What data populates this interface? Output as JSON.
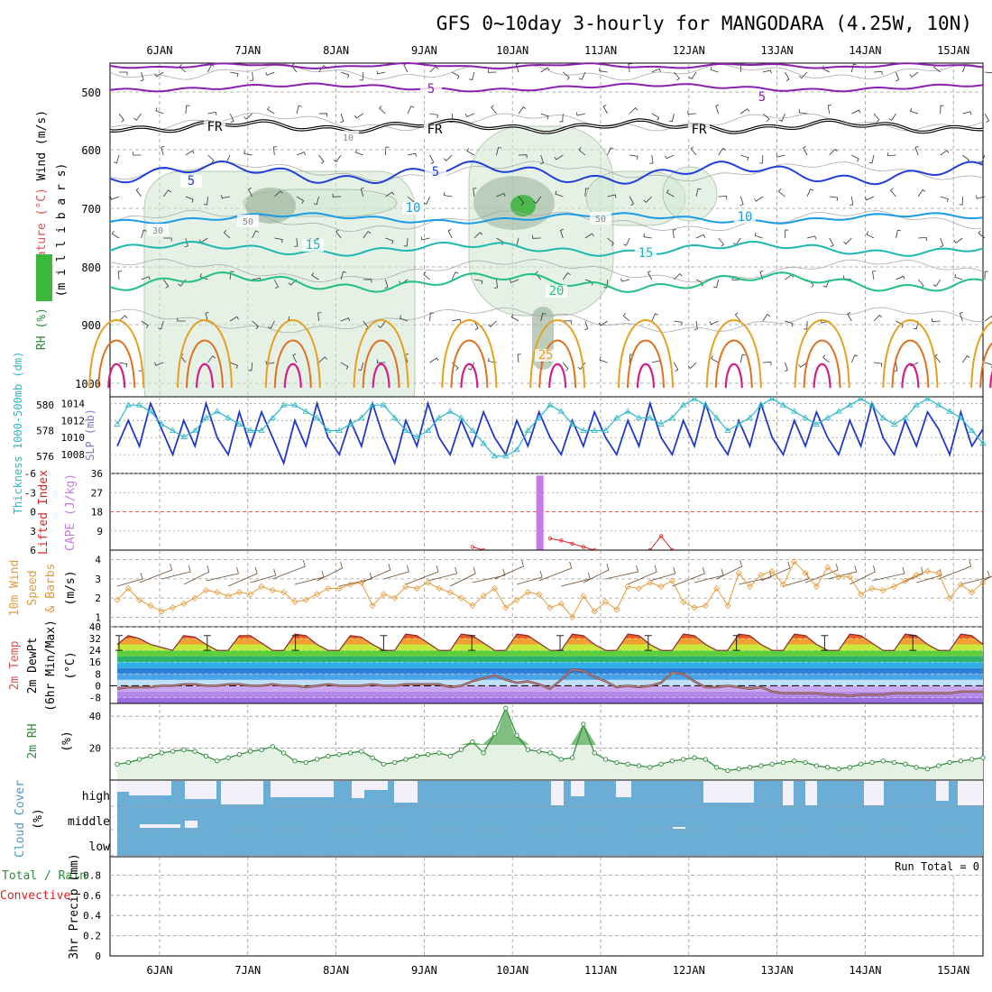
{
  "title": "GFS 0~10day 3-hourly for MANGODARA (4.25W, 10N)",
  "days": [
    "6JAN",
    "7JAN",
    "8JAN",
    "9JAN",
    "10JAN",
    "11JAN",
    "12JAN",
    "13JAN",
    "14JAN",
    "15JAN"
  ],
  "colors": {
    "purple": "#8a1fb0",
    "black": "#000000",
    "blue": "#1f3fd8",
    "skyblue": "#1a9be8",
    "teal": "#1cb8b0",
    "green": "#20c080",
    "orange": "#e6a020",
    "darkorange": "#e07020",
    "magenta": "#d0208a",
    "rhgreen": "#2e8b3a",
    "cloud": "#6aaed6",
    "cape": "#c77ae8",
    "li": "#e02020",
    "wind10": "#e69a3a",
    "thick": "#2bb8c8",
    "slp": "#2038c8"
  },
  "panels": [
    {
      "id": "upper-air",
      "label_lines": [
        "Wind (m/s)",
        "Temperature (°C)",
        "RH (%)",
        "(millibars)"
      ],
      "ylabel_parts": [
        {
          "text": "RH (%)",
          "color": "#2e8b3a"
        },
        {
          "text": "Temperature (°C)",
          "color": "#e05050"
        },
        {
          "text": "Wind (m/s)",
          "color": "#000000"
        },
        {
          "text": "(m i l l i b a r s)",
          "color": "#000000"
        }
      ],
      "ticks": [
        "500",
        "600",
        "700",
        "800",
        "900",
        "1000"
      ],
      "contour_labels": [
        "5",
        "5",
        "FR",
        "FR",
        "FR",
        "5",
        "5",
        "10",
        "10",
        "15",
        "15",
        "20",
        "25",
        "10",
        "50",
        "50",
        "30"
      ]
    },
    {
      "id": "thickness-slp",
      "ylabel_left": "Thickness 1000-500mb (dm)",
      "ylabel_right": "SLP (mb)",
      "ticks_left": [
        "580",
        "578",
        "576"
      ],
      "ticks_right": [
        "1014",
        "1012",
        "1010",
        "1008"
      ]
    },
    {
      "id": "cape-li",
      "ylabel_left": "Lifted Index",
      "ylabel_right": "CAPE (J/kg)",
      "ticks_left": [
        "-6",
        "-3",
        "0",
        "3",
        "6"
      ],
      "ticks_right": [
        "36",
        "27",
        "18",
        "9"
      ]
    },
    {
      "id": "wind10m",
      "ylabel": "10m Wind Speed & Barbs (m/s)",
      "ylabel_lines": [
        "10m Wind",
        "Speed",
        "& Barbs",
        "(m/s)"
      ],
      "ticks": [
        "4",
        "3",
        "2",
        "1"
      ]
    },
    {
      "id": "temp2m",
      "ylabel_lines": [
        "2m Temp",
        "2m DewPt",
        "(6hr Min/Max)",
        "(°C)"
      ],
      "ticks": [
        "40",
        "32",
        "24",
        "16",
        "8",
        "0",
        "-8"
      ]
    },
    {
      "id": "rh2m",
      "ylabel_lines": [
        "2m RH",
        "(%)"
      ],
      "ticks": [
        "40",
        "20"
      ]
    },
    {
      "id": "cloud",
      "ylabel_lines": [
        "Cloud Cover",
        "(%)"
      ],
      "layers": [
        "high",
        "middle",
        "low"
      ]
    },
    {
      "id": "precip",
      "ylabel_lines": [
        "Total / Rain",
        "Convective",
        "3hr Precip (mm)"
      ],
      "ticks": [
        "0.8",
        "0.6",
        "0.4",
        "0.2",
        "0"
      ],
      "run_total": "Run Total = 0"
    }
  ],
  "chart_data": [
    {
      "type": "line",
      "title": "Thickness 1000-500mb (dm) / SLP (mb)",
      "series": [
        {
          "name": "SLP (mb)",
          "values": [
            1009,
            1012,
            1009,
            1014,
            1011,
            1008,
            1012,
            1009,
            1014,
            1010,
            1008,
            1013,
            1009,
            1013,
            1010,
            1007,
            1012,
            1009,
            1014,
            1010,
            1008,
            1012,
            1009,
            1014,
            1010,
            1007,
            1012,
            1009,
            1014,
            1010,
            1008,
            1012,
            1009,
            1013,
            1010,
            1008,
            1012,
            1009,
            1013,
            1010,
            1008,
            1012,
            1009,
            1013,
            1010,
            1008,
            1012,
            1009,
            1014,
            1010,
            1008,
            1012,
            1009,
            1014,
            1010,
            1008,
            1012,
            1009,
            1014,
            1010,
            1008,
            1012,
            1009,
            1013,
            1010,
            1008,
            1012,
            1009,
            1014,
            1010,
            1008,
            1012,
            1009,
            1013,
            1011,
            1008,
            1013,
            1009,
            1011
          ]
        },
        {
          "name": "Thickness (dm)",
          "values": [
            578.5,
            580,
            580,
            579.5,
            578.5,
            578,
            577.5,
            578,
            579,
            579.5,
            579,
            578.5,
            578,
            578,
            579,
            580,
            580,
            579.5,
            579,
            578,
            578,
            578.5,
            579,
            580,
            580,
            579,
            578,
            577.5,
            578,
            579,
            579.5,
            579,
            578,
            577,
            576,
            576,
            576.5,
            578,
            579,
            580,
            579.5,
            578.5,
            578,
            578,
            578,
            579,
            579.5,
            579,
            579,
            578.5,
            579,
            580,
            580.5,
            580,
            579,
            578,
            578.5,
            579,
            580,
            580.5,
            580,
            579.5,
            579,
            578.5,
            579,
            579.5,
            580,
            580.5,
            580,
            579,
            578.5,
            579,
            580,
            580.5,
            580,
            579.5,
            579,
            578,
            577
          ]
        }
      ],
      "ylim_left": [
        575,
        581
      ],
      "ylim_right": [
        1006,
        1015
      ]
    },
    {
      "type": "line",
      "title": "Lifted Index / CAPE",
      "series": [
        {
          "name": "CAPE (J/kg)",
          "values": [
            0,
            0,
            0,
            0,
            0,
            0,
            0,
            0,
            0,
            0,
            0,
            0,
            0,
            0,
            0,
            0,
            0,
            0,
            0,
            0,
            0,
            0,
            0,
            0,
            0,
            0,
            0,
            0,
            0,
            0,
            0,
            0,
            0,
            0,
            0,
            0,
            0,
            0,
            35,
            0,
            0,
            0,
            0,
            0,
            0,
            0,
            0,
            0,
            0,
            0,
            0,
            0,
            0,
            0,
            0,
            0,
            0,
            0,
            0,
            0,
            0,
            0,
            0,
            0,
            0,
            0,
            0,
            0,
            0,
            0,
            0,
            0,
            0,
            0,
            0,
            0,
            0,
            0,
            0
          ]
        },
        {
          "name": "Lifted Index",
          "values": [
            null,
            null,
            null,
            null,
            null,
            null,
            null,
            null,
            null,
            null,
            null,
            null,
            null,
            null,
            null,
            null,
            null,
            null,
            null,
            null,
            null,
            null,
            null,
            null,
            null,
            null,
            null,
            null,
            null,
            null,
            null,
            null,
            5.5,
            6,
            null,
            null,
            null,
            null,
            null,
            4.2,
            4.5,
            5,
            5.5,
            6,
            null,
            null,
            null,
            null,
            6,
            3.8,
            6,
            null,
            null,
            null,
            null,
            null,
            null,
            null,
            null,
            null,
            null,
            null,
            null,
            null,
            null,
            null,
            null,
            null,
            null,
            null,
            null,
            null,
            null,
            null,
            null,
            null,
            null,
            null,
            null
          ]
        }
      ],
      "ylim_left": [
        6,
        -6
      ],
      "ylim_right": [
        0,
        36
      ]
    },
    {
      "type": "line",
      "title": "10m Wind Speed (m/s)",
      "series": [
        {
          "name": "10m Wind Speed",
          "values": [
            1.9,
            2.5,
            1.9,
            1.6,
            1.3,
            1.5,
            1.7,
            2.0,
            2.4,
            2.3,
            2.1,
            2.3,
            2.2,
            2.6,
            2.4,
            2.3,
            1.8,
            1.9,
            2.2,
            2.5,
            2.5,
            2.7,
            2.8,
            1.6,
            2.2,
            2.0,
            2.6,
            2.5,
            2.8,
            2.5,
            2.3,
            2.0,
            1.6,
            2.1,
            2.5,
            1.5,
            1.9,
            2.3,
            2.2,
            1.5,
            1.7,
            1.0,
            2.1,
            1.3,
            1.8,
            1.4,
            2.6,
            2.5,
            2.8,
            2.6,
            2.9,
            1.8,
            1.5,
            1.6,
            2.5,
            1.6,
            3.3,
            2.6,
            3.2,
            3.4,
            2.7,
            3.9,
            3.3,
            2.6,
            3.6,
            3.1,
            3.1,
            2.2,
            2.5,
            2.4,
            2.6,
            2.9,
            3.2,
            3.4,
            3.3,
            2.0,
            2.7,
            2.3,
            2.8
          ]
        }
      ],
      "ylim": [
        0.5,
        4.5
      ]
    },
    {
      "type": "line",
      "title": "2m Temp / 2m DewPt (°C)",
      "series": [
        {
          "name": "2m Temp",
          "values": [
            28,
            34,
            32,
            28,
            26,
            24,
            34,
            33,
            28,
            24,
            24,
            34,
            34,
            29,
            24,
            24,
            35,
            34,
            28,
            24,
            24,
            34,
            33,
            28,
            24,
            24,
            35,
            34,
            29,
            24,
            24,
            35,
            34,
            29,
            24,
            24,
            35,
            34,
            29,
            24,
            24,
            35,
            34,
            28,
            24,
            24,
            35,
            34,
            28,
            24,
            24,
            35,
            34,
            28,
            24,
            24,
            35,
            34,
            28,
            24,
            24,
            35,
            34,
            28,
            24,
            24,
            35,
            34,
            29,
            24,
            24,
            35,
            34,
            28,
            24,
            24,
            35,
            34,
            28
          ]
        },
        {
          "name": "2m DewPt",
          "values": [
            -2,
            -1,
            -1,
            -1,
            0,
            0,
            1,
            1,
            0,
            0,
            1,
            1,
            0,
            0,
            1,
            0,
            0,
            -1,
            0,
            1,
            0,
            0,
            0,
            1,
            0,
            0,
            1,
            1,
            1,
            1,
            -1,
            0,
            3,
            5,
            7,
            4,
            2,
            3,
            1,
            -2,
            4,
            11,
            10,
            6,
            3,
            -1,
            0,
            -1,
            0,
            2,
            9,
            8,
            3,
            -1,
            -1,
            0,
            -1,
            -2,
            -1,
            -4,
            -5,
            -5,
            -5,
            -5,
            -6,
            -6,
            -7,
            -6,
            -6,
            -6,
            -5,
            -5,
            -5,
            -5,
            -5,
            -5,
            -4,
            -4,
            -4
          ]
        }
      ],
      "ylim": [
        -12,
        40
      ]
    },
    {
      "type": "area",
      "title": "2m RH (%)",
      "series": [
        {
          "name": "2m RH",
          "values": [
            10,
            11,
            13,
            15,
            17,
            18,
            19,
            18,
            15,
            12,
            14,
            16,
            18,
            19,
            21,
            17,
            12,
            11,
            13,
            15,
            16,
            17,
            18,
            14,
            10,
            11,
            13,
            15,
            16,
            17,
            15,
            19,
            24,
            17,
            29,
            45,
            28,
            19,
            18,
            17,
            13,
            14,
            35,
            17,
            13,
            11,
            10,
            9,
            8,
            10,
            12,
            13,
            14,
            13,
            8,
            6,
            7,
            8,
            9,
            10,
            11,
            12,
            11,
            9,
            8,
            7,
            8,
            10,
            11,
            12,
            11,
            10,
            8,
            7,
            9,
            11,
            12,
            13,
            14
          ]
        }
      ],
      "ylim": [
        0,
        48
      ]
    },
    {
      "type": "bar",
      "title": "3hr Precip (mm)",
      "series": [
        {
          "name": "Total / Rain",
          "values": []
        }
      ],
      "ylim": [
        0,
        1
      ]
    }
  ]
}
